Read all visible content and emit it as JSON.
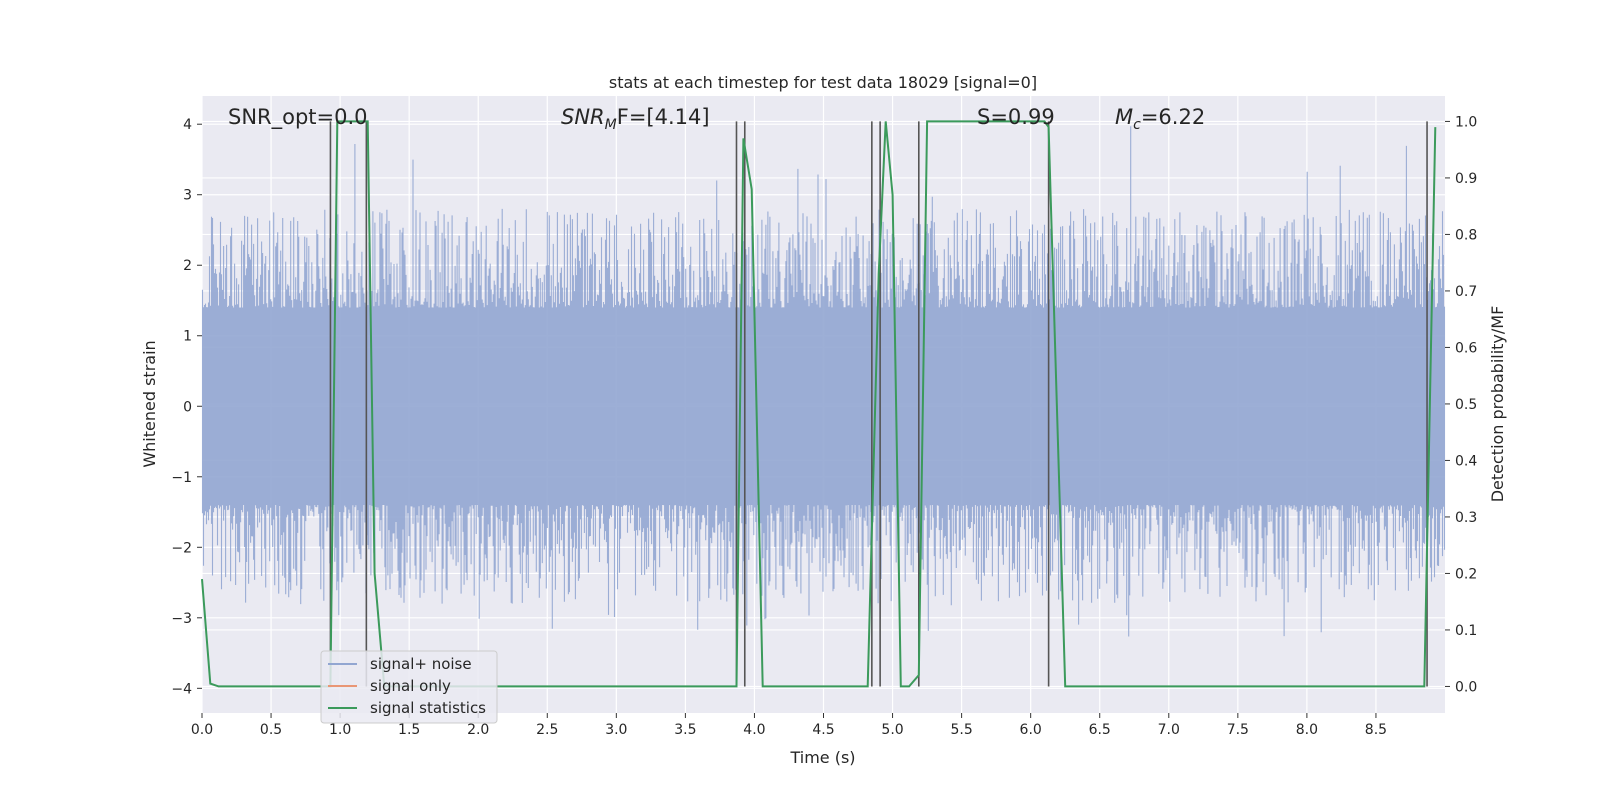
{
  "chart_data": {
    "type": "line",
    "title": "stats at each timestep for test data 18029 [signal=0]",
    "xlabel": "Time (s)",
    "ylabel_left": "Whitened strain",
    "ylabel_right": "Detection probability/MF",
    "xlim": [
      0,
      9.0
    ],
    "ylim_left": [
      -4.35,
      4.4
    ],
    "ylim_right": [
      -0.047,
      1.045
    ],
    "x_ticks": [
      "0.0",
      "0.5",
      "1.0",
      "1.5",
      "2.0",
      "2.5",
      "3.0",
      "3.5",
      "4.0",
      "4.5",
      "5.0",
      "5.5",
      "6.0",
      "6.5",
      "7.0",
      "7.5",
      "8.0",
      "8.5"
    ],
    "y_ticks_left": [
      "−4",
      "−3",
      "−2",
      "−1",
      "0",
      "1",
      "2",
      "3",
      "4"
    ],
    "y_ticks_right": [
      "0.0",
      "0.1",
      "0.2",
      "0.3",
      "0.4",
      "0.5",
      "0.6",
      "0.7",
      "0.8",
      "0.9",
      "1.0"
    ],
    "grid": true,
    "legend_position": "lower-left",
    "annotations": {
      "snr_opt": "SNR_opt=0.0",
      "snr_mf_base": "SNR",
      "snr_mf_sub": "M",
      "snr_mf_rest": "F=[4.14]",
      "s": "S=0.99",
      "mc_base": "M",
      "mc_sub": "c",
      "mc_rest": "=6.22"
    },
    "noise_band": {
      "description_of_envelope": "approx",
      "typical_abs_max": 2.4,
      "peak_abs_max": 4.0
    },
    "series": [
      {
        "name": "signal+ noise",
        "color": "#92a6d1",
        "axis": "left"
      },
      {
        "name": "signal only",
        "color": "#e99675",
        "axis": "left",
        "x": [],
        "y": []
      },
      {
        "name": "signal statistics",
        "color": "#3b9a5b",
        "axis": "right",
        "x": [
          0.0,
          0.06,
          0.12,
          0.93,
          0.98,
          1.2,
          1.25,
          1.32,
          3.87,
          3.92,
          3.98,
          4.06,
          4.82,
          4.9,
          4.95,
          5.0,
          5.06,
          5.12,
          5.19,
          5.25,
          6.1,
          6.13,
          6.25,
          8.85,
          8.93
        ],
        "y": [
          0.19,
          0.005,
          0.0,
          0.0,
          1.0,
          1.0,
          0.2,
          0.0,
          0.0,
          0.97,
          0.88,
          0.0,
          0.0,
          0.73,
          1.0,
          0.87,
          0.0,
          0.0,
          0.02,
          1.0,
          1.0,
          0.99,
          0.0,
          0.0,
          0.99
        ]
      }
    ],
    "detection_markers_x": [
      0.93,
      1.19,
      3.87,
      3.93,
      4.85,
      4.91,
      5.19,
      6.13,
      8.87
    ]
  }
}
